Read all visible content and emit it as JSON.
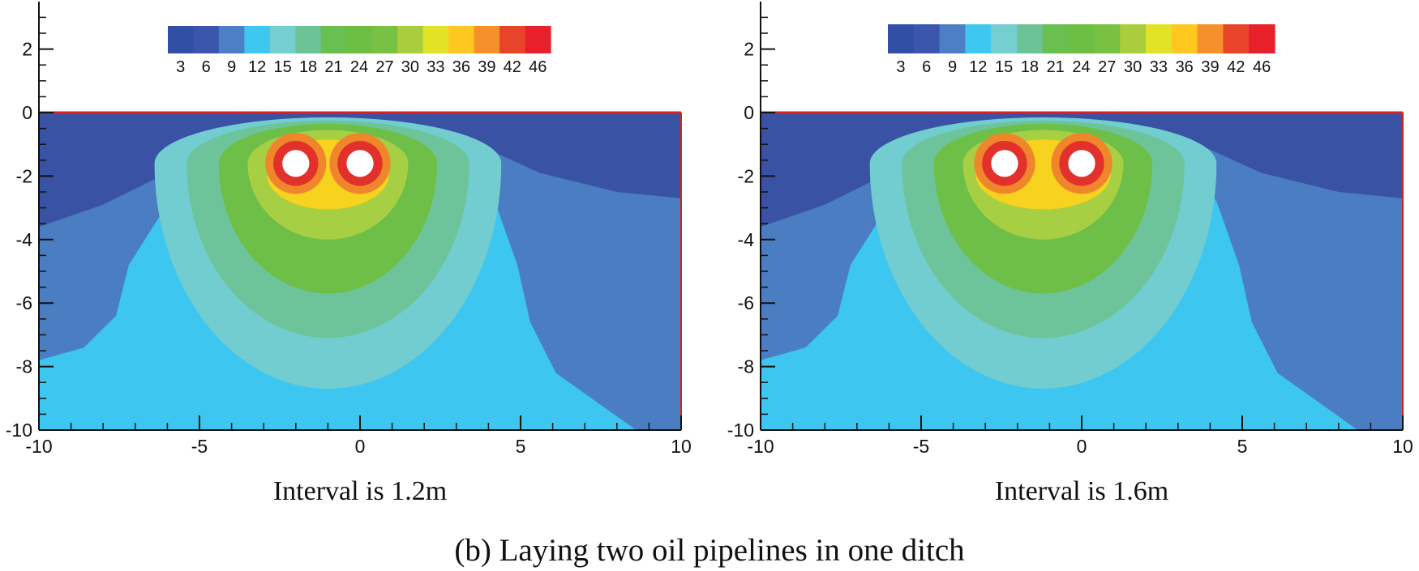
{
  "figure_caption": "(b) Laying two oil pipelines in one ditch",
  "colorbar": {
    "tick_labels": [
      "3",
      "6",
      "9",
      "12",
      "15",
      "18",
      "21",
      "24",
      "27",
      "30",
      "33",
      "36",
      "39",
      "42",
      "46"
    ],
    "colors": [
      "#3150a5",
      "#3a57ad",
      "#4d7fc4",
      "#3ec8f0",
      "#75cfd0",
      "#6cc496",
      "#69bf4f",
      "#6cbf43",
      "#78c142",
      "#a9cd3c",
      "#e3e326",
      "#ffc820",
      "#f5902a",
      "#e8442a",
      "#e8202a"
    ]
  },
  "layer_colors": {
    "navy": "#3a52a4",
    "mid_blue": "#4a7dc2",
    "cyan": "#3cc6f0",
    "teal": "#72cdd0",
    "sea_green": "#6dc49a",
    "green": "#6dbf47",
    "light_green": "#a6cf44",
    "yellow": "#f7d21f",
    "orange": "#f0862c",
    "red": "#e2302b",
    "pipe": "#ffffff",
    "surface_line": "#d92121"
  },
  "chart_data": [
    {
      "type": "heatmap",
      "title": "Interval is 1.2m",
      "xlim": [
        -10,
        10
      ],
      "ylim": [
        -10,
        2
      ],
      "x_ticks": [
        "-10",
        "-5",
        "0",
        "5",
        "10"
      ],
      "y_ticks": [
        "2",
        "0",
        "-2",
        "-4",
        "-6",
        "-8",
        "-10"
      ],
      "grid": false,
      "pipe_centers": [
        [
          -2,
          -1.6
        ],
        [
          0,
          -1.6
        ]
      ],
      "pipe_interval_m": 1.2,
      "contour_levels": [
        3,
        6,
        9,
        12,
        15,
        18,
        21,
        24,
        27,
        30,
        33,
        36,
        39,
        42,
        46
      ]
    },
    {
      "type": "heatmap",
      "title": "Interval is 1.6m",
      "xlim": [
        -10,
        10
      ],
      "ylim": [
        -10,
        2
      ],
      "x_ticks": [
        "-10",
        "-5",
        "0",
        "5",
        "10"
      ],
      "y_ticks": [
        "2",
        "0",
        "-2",
        "-4",
        "-6",
        "-8",
        "-10"
      ],
      "grid": false,
      "pipe_centers": [
        [
          -2.4,
          -1.6
        ],
        [
          0,
          -1.6
        ]
      ],
      "pipe_interval_m": 1.6,
      "contour_levels": [
        3,
        6,
        9,
        12,
        15,
        18,
        21,
        24,
        27,
        30,
        33,
        36,
        39,
        42,
        46
      ]
    }
  ]
}
